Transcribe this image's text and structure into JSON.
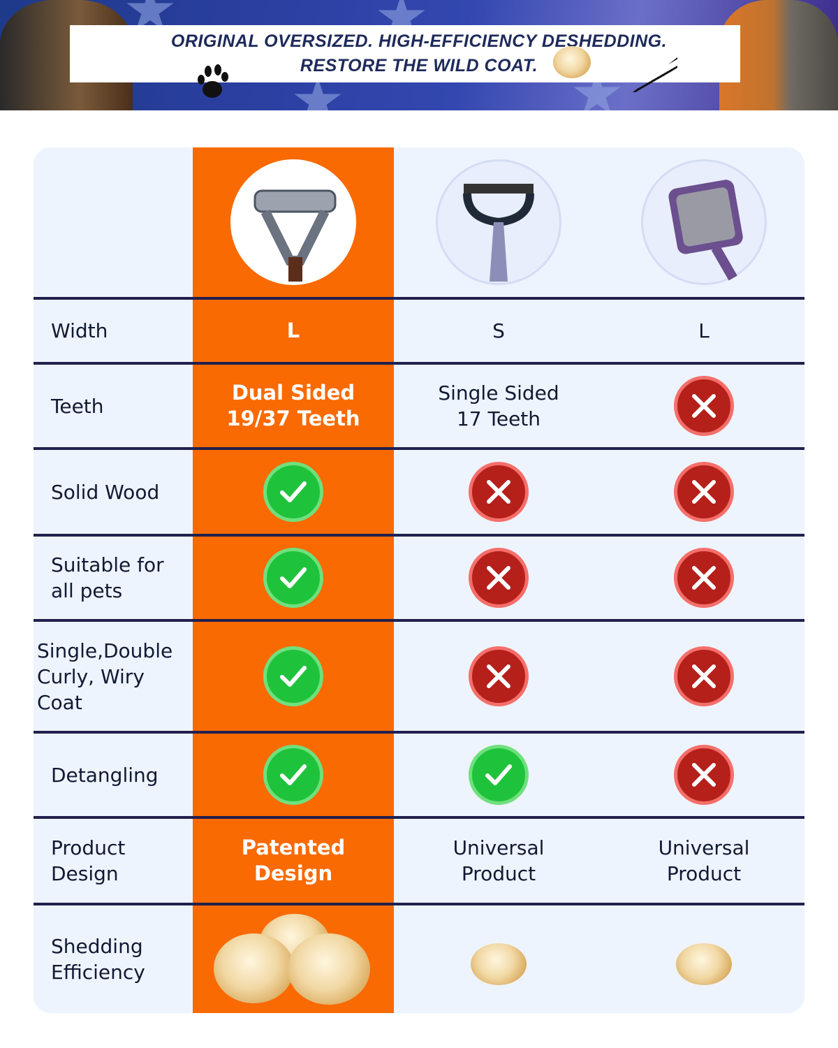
{
  "banner": {
    "line1": "ORIGINAL OVERSIZED. HIGH-EFFICIENCY DESHEDDING.",
    "line2": "RESTORE THE WILD COAT."
  },
  "colors": {
    "highlight": "#f96a03",
    "check": "#1fc33b",
    "cross": "#b5201b",
    "divider": "#22204d",
    "table_bg": "#eef4fd"
  },
  "rows": [
    {
      "label": "Width",
      "ours": "L",
      "b": "S",
      "c": "L"
    },
    {
      "label": "Teeth",
      "ours": "Dual Sided 19/37 Teeth",
      "b": "Single Sided 17 Teeth",
      "c": "cross"
    },
    {
      "label": "Solid Wood",
      "ours": "check",
      "b": "cross",
      "c": "cross"
    },
    {
      "label": "Suitable for all pets",
      "ours": "check",
      "b": "cross",
      "c": "cross"
    },
    {
      "label": "Single,Double Curly, Wiry Coat",
      "ours": "check",
      "b": "cross",
      "c": "cross"
    },
    {
      "label": "Detangling",
      "ours": "check",
      "b": "check",
      "c": "cross"
    },
    {
      "label": "Product Design",
      "ours": "Patented Design",
      "b": "Universal Product",
      "c": "Universal Product"
    },
    {
      "label": "Shedding Efficiency",
      "ours": "large fur pile",
      "b": "small fur ball",
      "c": "small fur ball"
    }
  ]
}
